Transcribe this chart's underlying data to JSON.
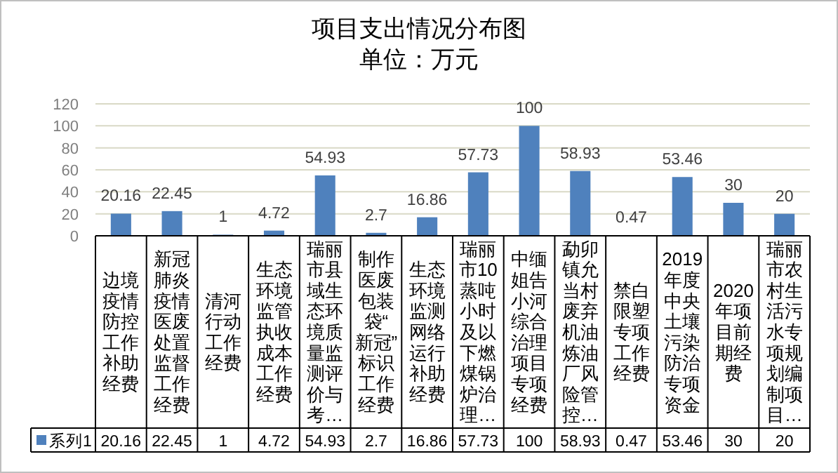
{
  "chart_data": {
    "type": "bar",
    "title": "项目支出情况分布图",
    "subtitle": "单位：万元",
    "categories": [
      "边境疫情防控工作补助经费",
      "新冠肺炎疫情医废处置监督工作经费",
      "清河行动工作经费",
      "生态环境监管执收成本工作经费",
      "瑞丽市县域生态环境质量监测评价与考…",
      "制作医废包装袋“新冠”标识工作经费",
      "生态环境监测网络运行补助经费",
      "瑞丽市10蒸吨小时及以下燃煤锅炉治理…",
      "中缅姐告小河综合治理项目专项经费",
      "勐卯镇允当村废弃机油炼油厂风险管控…",
      "禁白限塑专项工作经费",
      "2019年度中央土壤污染防治专项资金",
      "2020年项目前期经费",
      "瑞丽市农村生活污水专项规划编制项目…"
    ],
    "series": [
      {
        "name": "系列1",
        "color": "#4f81bd",
        "values": [
          20.16,
          22.45,
          1,
          4.72,
          54.93,
          2.7,
          16.86,
          57.73,
          100,
          58.93,
          0.47,
          53.46,
          30,
          20
        ],
        "value_labels": [
          "20.16",
          "22.45",
          "1",
          "4.72",
          "54.93",
          "2.7",
          "16.86",
          "57.73",
          "100",
          "58.93",
          "0.47",
          "53.46",
          "30",
          "20"
        ]
      }
    ],
    "ylim": [
      0,
      120
    ],
    "yticks": [
      0,
      20,
      40,
      60,
      80,
      100,
      120
    ],
    "grid": "y",
    "legend": "bottom",
    "data_labels": true
  }
}
